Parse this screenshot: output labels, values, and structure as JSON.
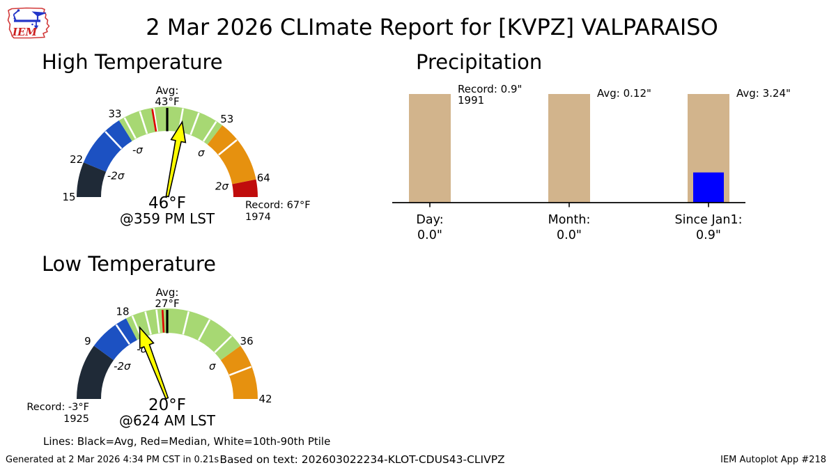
{
  "header": {
    "title": "2 Mar 2026 CLImate Report for [KVPZ] VALPARAISO",
    "logo_text": "IEM"
  },
  "footnote": "Lines: Black=Avg, Red=Median, White=10th-90th Ptile",
  "footer": {
    "generated": "Generated at 2 Mar 2026 4:34 PM CST in 0.21s",
    "based_on": "Based on text: 202603022234-KLOT-CDUS43-CLIVPZ",
    "app": "IEM Autoplot App #218"
  },
  "colors": {
    "segment_below2sigma": "#1f2a37",
    "segment_minus_sigma": "#1c51c2",
    "segment_normal": "#a7d873",
    "segment_plus_sigma": "#e6910f",
    "segment_record": "#c00c0c",
    "pointer_yellow": "#ffff00",
    "median_red": "#e00000",
    "avg_black": "#000000",
    "ptile_white": "#ffffff",
    "bar_tan": "#d2b48c",
    "bar_blue": "#0000ff"
  },
  "chart_data": [
    {
      "type": "gauge",
      "name": "high-temp-gauge",
      "title": "High Temperature",
      "min": 15,
      "max": 67,
      "avg": 43,
      "median": 40,
      "sigma": 10.5,
      "value": 46,
      "value_label": "46°F",
      "time_label": "@359 PM LST",
      "avg_label_lines": [
        "Avg:",
        "43°F"
      ],
      "record_side": "right",
      "record_lines": [
        "Record: 67°F",
        "1974"
      ],
      "segments": [
        {
          "from": 15,
          "to": 22,
          "color": "#1f2a37"
        },
        {
          "from": 22,
          "to": 33,
          "color": "#1c51c2"
        },
        {
          "from": 33,
          "to": 53,
          "color": "#a7d873"
        },
        {
          "from": 53,
          "to": 64,
          "color": "#e6910f"
        },
        {
          "from": 64,
          "to": 67,
          "color": "#c00c0c"
        }
      ],
      "number_labels": [
        {
          "value": 15,
          "text": "15"
        },
        {
          "value": 22,
          "text": "22"
        },
        {
          "value": 33,
          "text": "33"
        },
        {
          "value": 53,
          "text": "53"
        },
        {
          "value": 64,
          "text": "64"
        }
      ],
      "sigma_labels": [
        {
          "value": 22,
          "text": "-2σ"
        },
        {
          "value": 33,
          "text": "-σ"
        },
        {
          "value": 53,
          "text": "σ"
        },
        {
          "value": 64,
          "text": "2σ"
        }
      ],
      "ptile_lines": [
        29.5,
        34.2,
        37.5,
        40.3,
        45.7,
        48.5,
        51.8,
        56.5
      ]
    },
    {
      "type": "gauge",
      "name": "low-temp-gauge",
      "title": "Low Temperature",
      "min": -3,
      "max": 42,
      "avg": 27,
      "median": 26,
      "sigma": 9,
      "value": 20,
      "value_label": "20°F",
      "time_label": "@624 AM LST",
      "avg_label_lines": [
        "Avg:",
        "27°F"
      ],
      "record_side": "left",
      "record_lines": [
        "Record: -3°F",
        "1925"
      ],
      "segments": [
        {
          "from": -3,
          "to": 9,
          "color": "#1f2a37"
        },
        {
          "from": 9,
          "to": 18,
          "color": "#1c51c2"
        },
        {
          "from": 18,
          "to": 36,
          "color": "#a7d873"
        },
        {
          "from": 36,
          "to": 42,
          "color": "#e6910f"
        }
      ],
      "number_labels": [
        {
          "value": 9,
          "text": "9"
        },
        {
          "value": 18,
          "text": "18"
        },
        {
          "value": 36,
          "text": "36"
        },
        {
          "value": 42,
          "text": "42"
        }
      ],
      "sigma_labels": [
        {
          "value": 9,
          "text": "-2σ"
        },
        {
          "value": 18,
          "text": "-σ"
        },
        {
          "value": 36,
          "text": "σ"
        }
      ],
      "ptile_lines": [
        15.5,
        19.4,
        22.3,
        24.7,
        29.3,
        31.7,
        34.6,
        38.5
      ]
    },
    {
      "type": "bar",
      "name": "precip-chart",
      "title": "Precipitation",
      "bar_color": "#d2b48c",
      "value_color": "#0000ff",
      "categories": [
        {
          "label": "Day:",
          "value_label": "0.0\"",
          "value": 0.0,
          "scale_max": 0.9,
          "annotation_lines": [
            "Record: 0.9\"",
            "1991"
          ]
        },
        {
          "label": "Month:",
          "value_label": "0.0\"",
          "value": 0.0,
          "scale_max": 0.12,
          "annotation_lines": [
            "Avg: 0.12\""
          ]
        },
        {
          "label": "Since Jan1:",
          "value_label": "0.9\"",
          "value": 0.9,
          "scale_max": 3.24,
          "annotation_lines": [
            "Avg: 3.24\""
          ]
        }
      ]
    }
  ]
}
